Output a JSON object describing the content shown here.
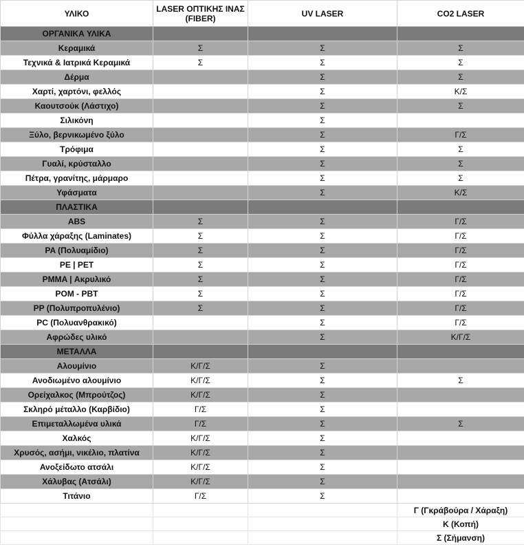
{
  "headers": [
    "ΥΛΙΚΟ",
    "LASER ΟΠΤΙΚΗΣ ΙΝΑΣ (FIBER)",
    "UV LASER",
    "CO2 LASER"
  ],
  "sections": [
    {
      "title": "ΟΡΓΑΝΙΚΑ ΥΛΙΚΑ",
      "rows": [
        [
          "Κεραμικά",
          "Σ",
          "Σ",
          "Σ"
        ],
        [
          "Τεχνικά & Ιατρικά Κεραμικά",
          "Σ",
          "Σ",
          "Σ"
        ],
        [
          "Δέρμα",
          "",
          "Σ",
          "Σ"
        ],
        [
          "Χαρτί, χαρτόνι, φελλός",
          "",
          "Σ",
          "Κ/Σ"
        ],
        [
          "Καουτσούκ (Λάστιχο)",
          "",
          "Σ",
          "Σ"
        ],
        [
          "Σιλικόνη",
          "",
          "Σ",
          ""
        ],
        [
          "Ξύλο, βερνικωμένο ξύλο",
          "",
          "Σ",
          "Γ/Σ"
        ],
        [
          "Τρόφιμα",
          "",
          "Σ",
          "Σ"
        ],
        [
          "Γυαλί, κρύσταλλο",
          "",
          "Σ",
          "Σ"
        ],
        [
          "Πέτρα, γρανίτης, μάρμαρο",
          "",
          "Σ",
          "Σ"
        ],
        [
          "Υφάσματα",
          "",
          "Σ",
          "Κ/Σ"
        ]
      ]
    },
    {
      "title": "ΠΛΑΣΤΙΚΑ",
      "rows": [
        [
          "ABS",
          "Σ",
          "Σ",
          "Γ/Σ"
        ],
        [
          "Φύλλα χάραξης (Laminates)",
          "Σ",
          "Σ",
          "Γ/Σ"
        ],
        [
          "PA (Πολυαμίδιο)",
          "Σ",
          "Σ",
          "Γ/Σ"
        ],
        [
          "PE | PET",
          "Σ",
          "Σ",
          "Γ/Σ"
        ],
        [
          "PMMA | Ακρυλικό",
          "Σ",
          "Σ",
          "Γ/Σ"
        ],
        [
          "POM - PBT",
          "Σ",
          "Σ",
          "Γ/Σ"
        ],
        [
          "PP (Πολυπροπυλένιο)",
          "Σ",
          "Σ",
          "Γ/Σ"
        ],
        [
          "PC (Πολυανθρακικό)",
          "",
          "Σ",
          "Γ/Σ"
        ],
        [
          "Αφρώδες υλικό",
          "",
          "Σ",
          "Κ/Γ/Σ"
        ]
      ]
    },
    {
      "title": "ΜΕΤΑΛΛΑ",
      "rows": [
        [
          "Αλουμίνιο",
          "Κ/Γ/Σ",
          "Σ",
          ""
        ],
        [
          "Ανοδιωμένο αλουμίνιο",
          "Κ/Γ/Σ",
          "Σ",
          "Σ"
        ],
        [
          "Ορείχαλκος (Μπρούτζος)",
          "Κ/Γ/Σ",
          "Σ",
          ""
        ],
        [
          "Σκληρό μέταλλο (Καρβίδιο)",
          "Γ/Σ",
          "Σ",
          ""
        ],
        [
          "Επιμεταλλωμένα υλικά",
          "Γ/Σ",
          "Σ",
          "Σ"
        ],
        [
          "Χαλκός",
          "Κ/Γ/Σ",
          "Σ",
          ""
        ],
        [
          "Χρυσός, ασήμι, νικέλιο, πλατίνα",
          "Κ/Γ/Σ",
          "Σ",
          ""
        ],
        [
          "Ανοξείδωτο ατσάλι",
          "Κ/Γ/Σ",
          "Σ",
          ""
        ],
        [
          "Χάλυβας (Ατσάλι)",
          "Κ/Γ/Σ",
          "Σ",
          ""
        ],
        [
          "Τιτάνιο",
          "Γ/Σ",
          "Σ",
          ""
        ]
      ]
    }
  ],
  "legend": [
    "Γ (Γκράβούρα / Χάραξη)",
    "Κ (Κοπή)",
    "Σ (Σήμανση)"
  ],
  "colors": {
    "section": "#7b7b7b",
    "stripe": "#a8a8a8"
  }
}
